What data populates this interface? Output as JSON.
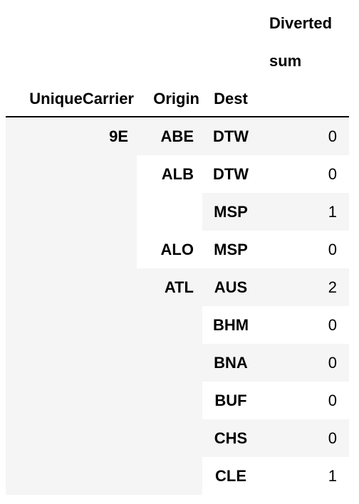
{
  "header": {
    "column_group_top": "Diverted",
    "column_group_sub": "sum",
    "index_names": [
      "UniqueCarrier",
      "Origin",
      "Dest"
    ]
  },
  "rows": [
    {
      "carrier": "9E",
      "origin": "ABE",
      "dest": "DTW",
      "value": "0"
    },
    {
      "carrier": "",
      "origin": "ALB",
      "dest": "DTW",
      "value": "0"
    },
    {
      "carrier": "",
      "origin": "",
      "dest": "MSP",
      "value": "1"
    },
    {
      "carrier": "",
      "origin": "ALO",
      "dest": "MSP",
      "value": "0"
    },
    {
      "carrier": "",
      "origin": "ATL",
      "dest": "AUS",
      "value": "2"
    },
    {
      "carrier": "",
      "origin": "",
      "dest": "BHM",
      "value": "0"
    },
    {
      "carrier": "",
      "origin": "",
      "dest": "BNA",
      "value": "0"
    },
    {
      "carrier": "",
      "origin": "",
      "dest": "BUF",
      "value": "0"
    },
    {
      "carrier": "",
      "origin": "",
      "dest": "CHS",
      "value": "0"
    },
    {
      "carrier": "",
      "origin": "",
      "dest": "CLE",
      "value": "1"
    }
  ]
}
